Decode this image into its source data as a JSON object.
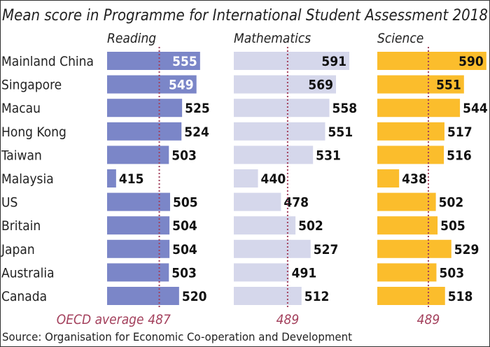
{
  "chart_data": {
    "type": "bar",
    "title": "Mean score in Programme for International Student Assessment 2018",
    "source": "Source: Organisation for Economic Co-operation and Development",
    "categories": [
      "Mainland China",
      "Singapore",
      "Macau",
      "Hong Kong",
      "Taiwan",
      "Malaysia",
      "US",
      "Britain",
      "Japan",
      "Australia",
      "Canada"
    ],
    "oecd_label": "OECD average",
    "series": [
      {
        "name": "Reading",
        "values": [
          555,
          549,
          525,
          524,
          503,
          415,
          505,
          504,
          504,
          503,
          520
        ],
        "oecd_average": 487,
        "color": "#7b86c8",
        "inside_text": "#ffffff"
      },
      {
        "name": "Mathematics",
        "values": [
          591,
          569,
          558,
          551,
          531,
          440,
          478,
          502,
          527,
          491,
          512
        ],
        "oecd_average": 489,
        "color": "#d5d7eb",
        "inside_text": "#111111"
      },
      {
        "name": "Science",
        "values": [
          590,
          551,
          544,
          517,
          516,
          438,
          502,
          505,
          529,
          503,
          518
        ],
        "oecd_average": 489,
        "color": "#fbbd2c",
        "inside_text": "#111111"
      }
    ],
    "oecd_color": "#a3405c"
  }
}
